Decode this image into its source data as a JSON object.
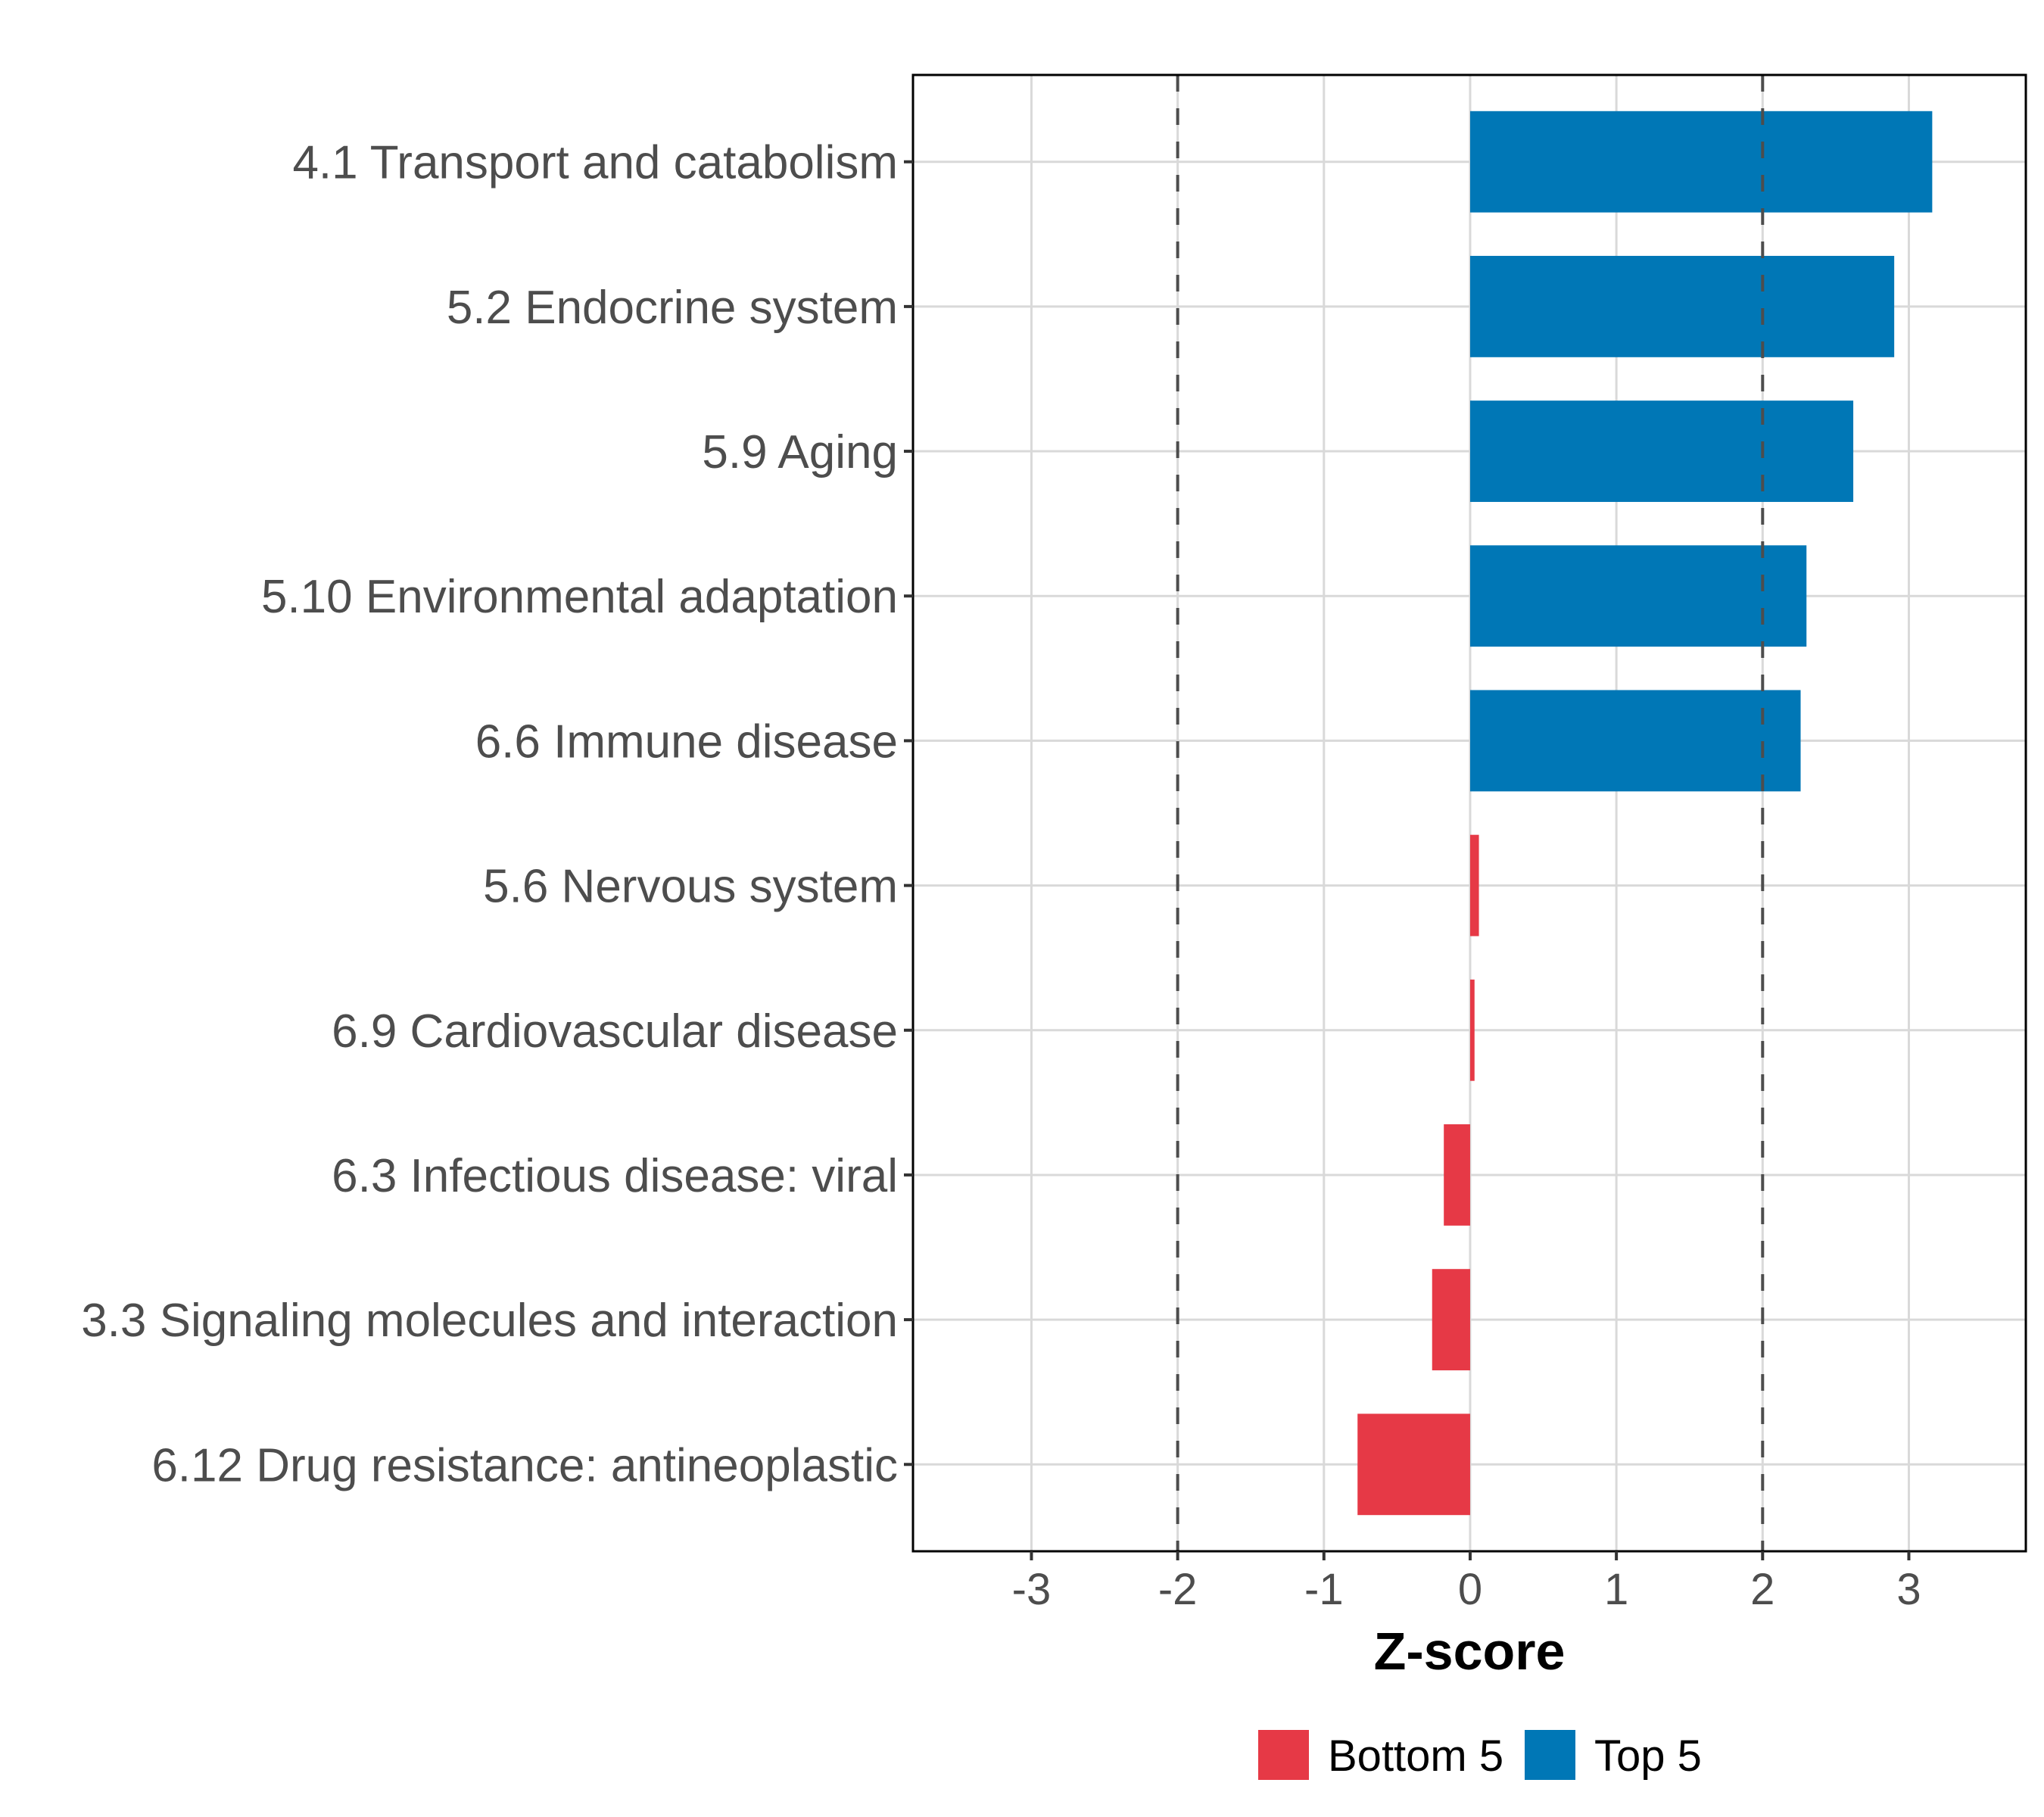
{
  "chart_data": {
    "type": "bar",
    "orientation": "horizontal",
    "title": "",
    "xlabel": "Z-score",
    "ylabel": "",
    "xlim": [
      -3.81,
      3.8
    ],
    "xticks": [
      -3,
      -2,
      -1,
      0,
      1,
      2,
      3
    ],
    "xtick_labels": [
      "-3",
      "-2",
      "-1",
      "0",
      "1",
      "2",
      "3"
    ],
    "grid": true,
    "reference_lines": [
      {
        "x": -2,
        "style": "dashed",
        "color": "#4d4d4d"
      },
      {
        "x": 2,
        "style": "dashed",
        "color": "#4d4d4d"
      }
    ],
    "categories": [
      "4.1 Transport and catabolism",
      "5.2 Endocrine system",
      "5.9 Aging",
      "5.10 Environmental adaptation",
      "6.6 Immune disease",
      "5.6 Nervous system",
      "6.9 Cardiovascular disease",
      "6.3 Infectious disease: viral",
      "3.3 Signaling molecules and interaction",
      "6.12 Drug resistance: antineoplastic"
    ],
    "values": [
      3.16,
      2.9,
      2.62,
      2.3,
      2.26,
      0.06,
      0.03,
      -0.18,
      -0.26,
      -0.77
    ],
    "groups": [
      "Top 5",
      "Top 5",
      "Top 5",
      "Top 5",
      "Top 5",
      "Bottom 5",
      "Bottom 5",
      "Bottom 5",
      "Bottom 5",
      "Bottom 5"
    ],
    "legend": {
      "position": "bottom",
      "entries": [
        {
          "label": "Bottom 5",
          "color": "#e63946"
        },
        {
          "label": "Top 5",
          "color": "#0077b6"
        }
      ]
    }
  }
}
